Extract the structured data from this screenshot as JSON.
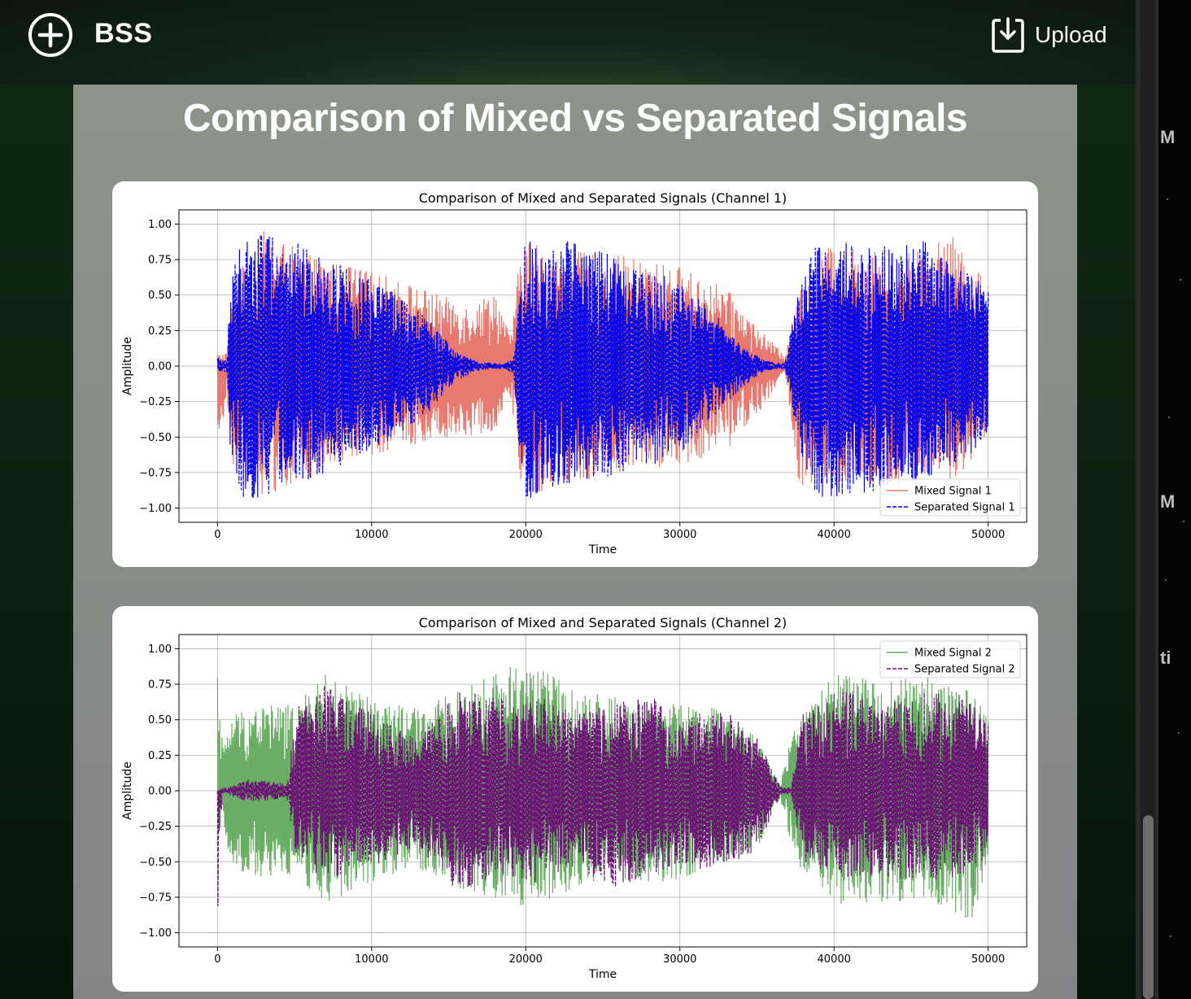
{
  "header": {
    "brand": "BSS",
    "upload_label": "Upload",
    "add_icon": "plus-circle-icon",
    "upload_icon": "download-box-icon"
  },
  "page": {
    "title": "Comparison of Mixed vs Separated Signals"
  },
  "background_window": {
    "peek_texts": [
      "M",
      "M",
      "ti"
    ]
  },
  "chart_data": [
    {
      "type": "line",
      "title": "Comparison of Mixed and Separated Signals (Channel 1)",
      "xlabel": "Time",
      "ylabel": "Amplitude",
      "xlim": [
        -2500,
        52500
      ],
      "ylim": [
        -1.1,
        1.1
      ],
      "xticks": [
        0,
        10000,
        20000,
        30000,
        40000,
        50000
      ],
      "yticks": [
        1.0,
        0.75,
        0.5,
        0.25,
        0.0,
        -0.25,
        -0.5,
        -0.75,
        -1.0
      ],
      "xtick_labels": [
        "0",
        "10000",
        "20000",
        "30000",
        "40000",
        "50000"
      ],
      "ytick_labels": [
        "1.00",
        "0.75",
        "0.50",
        "0.25",
        "0.00",
        "−0.25",
        "−0.50",
        "−0.75",
        "−1.00"
      ],
      "grid": true,
      "legend_position": "lower-right",
      "series": [
        {
          "name": "Mixed Signal 1",
          "color": "#e8796e",
          "style": "solid",
          "envelope": {
            "x": [
              0,
              600,
              1000,
              3000,
              6000,
              9000,
              12000,
              14500,
              16500,
              18000,
              19000,
              19800,
              22000,
              26000,
              30000,
              33000,
              35000,
              36800,
              37800,
              40000,
              44000,
              48000,
              50000
            ],
            "top": [
              0.08,
              0.1,
              0.6,
              0.95,
              0.78,
              0.7,
              0.6,
              0.5,
              0.42,
              0.55,
              0.2,
              0.92,
              0.82,
              0.78,
              0.7,
              0.55,
              0.28,
              0.08,
              0.55,
              0.9,
              0.8,
              0.92,
              0.55
            ],
            "bottom": [
              -0.76,
              -0.2,
              -0.72,
              -0.92,
              -0.8,
              -0.65,
              -0.58,
              -0.5,
              -0.5,
              -0.45,
              -0.2,
              -0.95,
              -0.85,
              -0.75,
              -0.7,
              -0.6,
              -0.35,
              -0.05,
              -0.9,
              -0.9,
              -0.85,
              -0.8,
              -0.5
            ]
          }
        },
        {
          "name": "Separated Signal 1",
          "color": "#0000ee",
          "style": "dashed",
          "envelope": {
            "x": [
              0,
              600,
              800,
              1500,
              3000,
              5000,
              8000,
              11000,
              13500,
              15500,
              17000,
              18500,
              19200,
              19800,
              21000,
              24000,
              27000,
              30000,
              32000,
              34000,
              35500,
              36800,
              37800,
              39000,
              42000,
              46000,
              50000
            ],
            "top": [
              0.06,
              0.04,
              0.55,
              0.92,
              0.96,
              0.88,
              0.72,
              0.55,
              0.35,
              0.1,
              0.03,
              0.02,
              0.05,
              0.95,
              0.92,
              0.85,
              0.72,
              0.6,
              0.4,
              0.15,
              0.04,
              0.02,
              0.6,
              0.92,
              0.85,
              0.88,
              0.55
            ],
            "bottom": [
              -0.05,
              -0.04,
              -0.55,
              -0.92,
              -0.96,
              -0.85,
              -0.7,
              -0.55,
              -0.35,
              -0.1,
              -0.03,
              -0.02,
              -0.05,
              -0.95,
              -0.9,
              -0.8,
              -0.75,
              -0.62,
              -0.4,
              -0.15,
              -0.04,
              -0.02,
              -0.6,
              -0.95,
              -0.9,
              -0.8,
              -0.55
            ]
          }
        }
      ]
    },
    {
      "type": "line",
      "title": "Comparison of Mixed and Separated Signals (Channel 2)",
      "xlabel": "Time",
      "ylabel": "Amplitude",
      "xlim": [
        -2500,
        52500
      ],
      "ylim": [
        -1.1,
        1.1
      ],
      "xticks": [
        0,
        10000,
        20000,
        30000,
        40000,
        50000
      ],
      "yticks": [
        1.0,
        0.75,
        0.5,
        0.25,
        0.0,
        -0.25,
        -0.5,
        -0.75,
        -1.0
      ],
      "xtick_labels": [
        "0",
        "10000",
        "20000",
        "30000",
        "40000",
        "50000"
      ],
      "ytick_labels": [
        "1.00",
        "0.75",
        "0.50",
        "0.25",
        "0.00",
        "−0.25",
        "−0.50",
        "−0.75",
        "−1.00"
      ],
      "grid": true,
      "legend_position": "upper-right",
      "series": [
        {
          "name": "Mixed Signal 2",
          "color": "#6aae65",
          "style": "solid",
          "envelope": {
            "x": [
              0,
              400,
              900,
              3000,
              5000,
              7000,
              10000,
              13000,
              16000,
              20000,
              23000,
              26000,
              29000,
              32000,
              35000,
              36500,
              37500,
              40000,
              43000,
              46000,
              49000,
              50000
            ],
            "top": [
              0.9,
              0.28,
              0.55,
              0.62,
              0.6,
              0.82,
              0.65,
              0.58,
              0.72,
              0.95,
              0.72,
              0.66,
              0.62,
              0.6,
              0.38,
              0.05,
              0.5,
              0.82,
              0.78,
              0.8,
              0.72,
              0.55
            ],
            "bottom": [
              -0.3,
              -0.25,
              -0.55,
              -0.62,
              -0.6,
              -0.8,
              -0.65,
              -0.55,
              -0.7,
              -0.82,
              -0.72,
              -0.62,
              -0.66,
              -0.55,
              -0.42,
              -0.05,
              -0.5,
              -0.8,
              -0.8,
              -0.75,
              -0.95,
              -0.55
            ]
          }
        },
        {
          "name": "Separated Signal 2",
          "color": "#6a1273",
          "style": "dashed",
          "envelope": {
            "x": [
              0,
              300,
              700,
              2000,
              4500,
              5200,
              7000,
              10000,
              13000,
              15500,
              18000,
              20500,
              23000,
              26000,
              28000,
              30000,
              32500,
              35000,
              36500,
              37200,
              38000,
              40500,
              43000,
              46000,
              49000,
              50000
            ],
            "top": [
              0.0,
              0.02,
              0.03,
              0.08,
              0.06,
              0.6,
              0.75,
              0.55,
              0.35,
              0.72,
              0.65,
              0.7,
              0.55,
              0.62,
              0.68,
              0.5,
              0.62,
              0.38,
              0.04,
              0.02,
              0.55,
              0.72,
              0.6,
              0.7,
              0.65,
              0.48
            ],
            "bottom": [
              -1.0,
              -0.02,
              -0.03,
              -0.08,
              -0.06,
              -0.55,
              -0.62,
              -0.55,
              -0.38,
              -0.72,
              -0.62,
              -0.65,
              -0.55,
              -0.7,
              -0.6,
              -0.52,
              -0.58,
              -0.42,
              -0.04,
              -0.02,
              -0.5,
              -0.62,
              -0.6,
              -0.65,
              -0.58,
              -0.45
            ]
          }
        }
      ]
    }
  ]
}
